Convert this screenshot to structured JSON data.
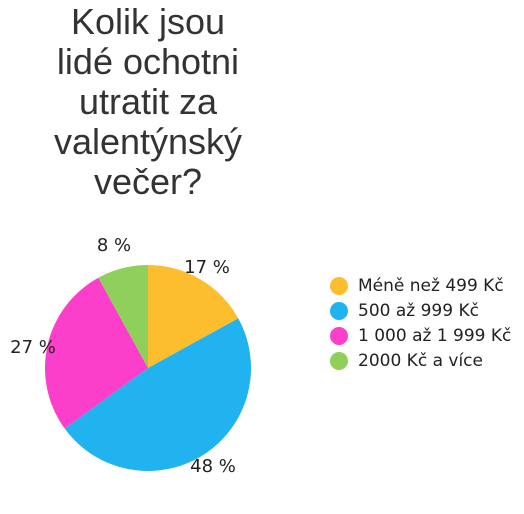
{
  "chart_data": {
    "type": "pie",
    "title": "Kolik jsou\nlidé ochotni\nutratit za\nvalentýnský\nvečer?",
    "categories": [
      "Méně než 499 Kč",
      "500 až 999 Kč",
      "1 000 až 1 999 Kč",
      "2000 Kč a více"
    ],
    "values": [
      17,
      48,
      27,
      8
    ],
    "value_labels": [
      "17 %",
      "48 %",
      "27 %",
      "8 %"
    ],
    "colors": [
      "#fdbe2e",
      "#21b3ef",
      "#fb3fcb",
      "#8fd05a"
    ],
    "legend_placement": "right",
    "start_angle": "12 o'clock",
    "direction": "clockwise"
  }
}
